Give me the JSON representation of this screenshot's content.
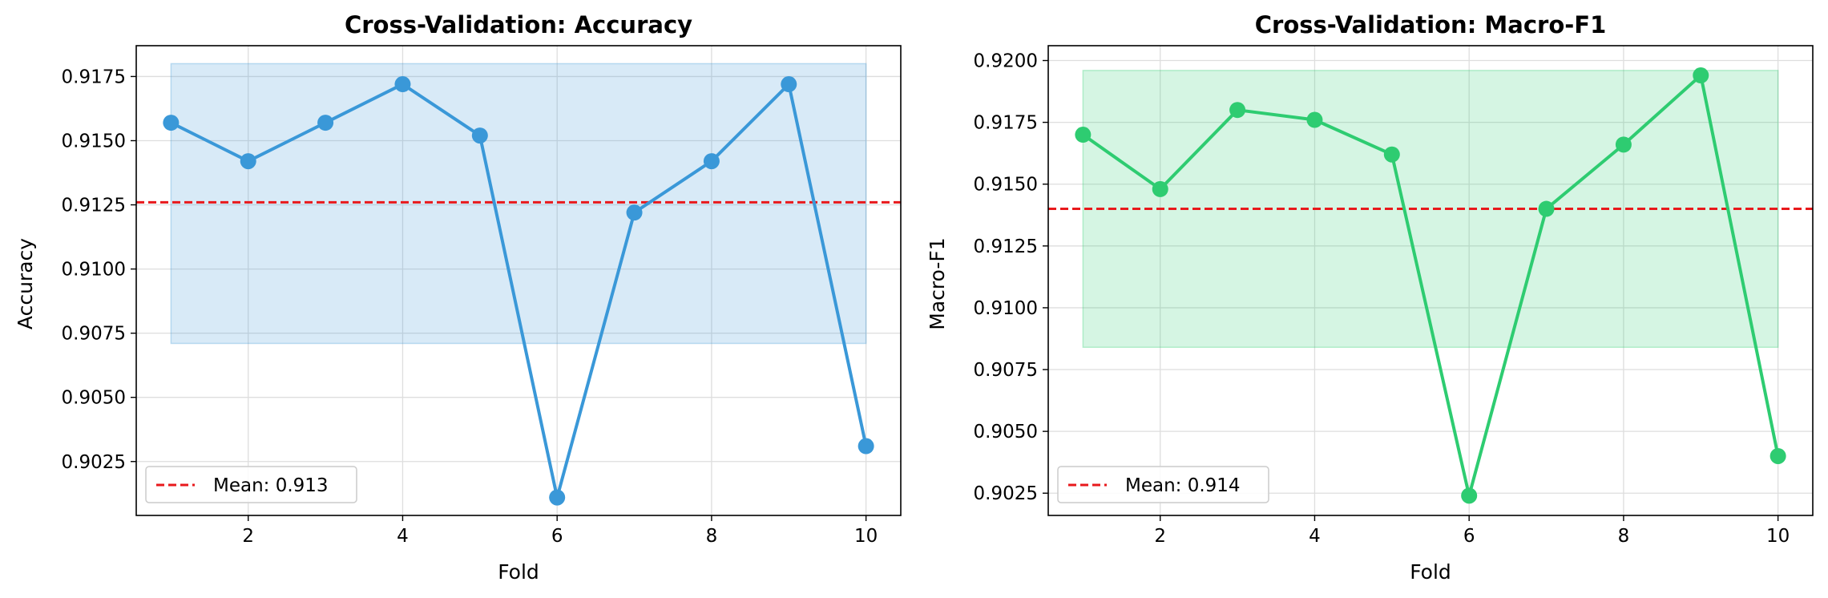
{
  "chart_data": [
    {
      "type": "line",
      "title": "Cross-Validation: Accuracy",
      "xlabel": "Fold",
      "ylabel": "Accuracy",
      "xlim": [
        0.55,
        10.45
      ],
      "ylim": [
        0.9004,
        0.9187
      ],
      "xticks": [
        2,
        4,
        6,
        8,
        10
      ],
      "yticks": [
        0.9025,
        0.905,
        0.9075,
        0.91,
        0.9125,
        0.915,
        0.9175
      ],
      "ytick_labels": [
        "0.9025",
        "0.9050",
        "0.9075",
        "0.9100",
        "0.9125",
        "0.9150",
        "0.9175"
      ],
      "grid": true,
      "legend_placement": "lower-left",
      "color": "#3a98d8",
      "x": [
        1,
        2,
        3,
        4,
        5,
        6,
        7,
        8,
        9,
        10
      ],
      "values": [
        0.9157,
        0.9142,
        0.9157,
        0.9172,
        0.9152,
        0.9011,
        0.9122,
        0.9142,
        0.9172,
        0.9031
      ],
      "band": {
        "x": [
          1,
          10
        ],
        "y": [
          0.9071,
          0.918
        ],
        "color": "#3a98d8"
      },
      "mean": {
        "value": 0.9126,
        "label": "Mean: 0.913",
        "color": "#e8191c"
      }
    },
    {
      "type": "line",
      "title": "Cross-Validation: Macro-F1",
      "xlabel": "Fold",
      "ylabel": "Macro-F1",
      "xlim": [
        0.55,
        10.45
      ],
      "ylim": [
        0.9016,
        0.9206
      ],
      "xticks": [
        2,
        4,
        6,
        8,
        10
      ],
      "yticks": [
        0.9025,
        0.905,
        0.9075,
        0.91,
        0.9125,
        0.915,
        0.9175,
        0.92
      ],
      "ytick_labels": [
        "0.9025",
        "0.9050",
        "0.9075",
        "0.9100",
        "0.9125",
        "0.9150",
        "0.9175",
        "0.9200"
      ],
      "grid": true,
      "legend_placement": "lower-left",
      "color": "#2ecc71",
      "x": [
        1,
        2,
        3,
        4,
        5,
        6,
        7,
        8,
        9,
        10
      ],
      "values": [
        0.917,
        0.9148,
        0.918,
        0.9176,
        0.9162,
        0.9024,
        0.914,
        0.9166,
        0.9194,
        0.904
      ],
      "band": {
        "x": [
          1,
          10
        ],
        "y": [
          0.9084,
          0.9196
        ],
        "color": "#2ecc71"
      },
      "mean": {
        "value": 0.914,
        "label": "Mean: 0.914",
        "color": "#e8191c"
      }
    }
  ]
}
